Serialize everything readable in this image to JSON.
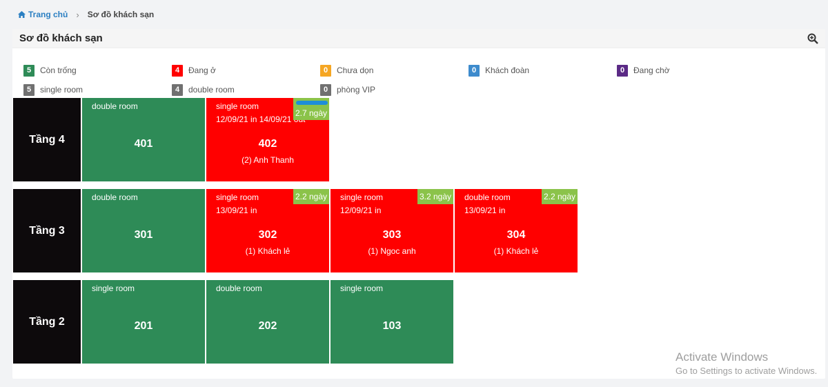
{
  "breadcrumb": {
    "home": "Trang chủ",
    "sep": "›",
    "current": "Sơ đồ khách sạn"
  },
  "panel": {
    "title": "Sơ đồ khách sạn"
  },
  "legend": {
    "row1": [
      {
        "count": "5",
        "label": "Còn trống",
        "color": "#2e8b57"
      },
      {
        "count": "4",
        "label": "Đang ở",
        "color": "#ff0000"
      },
      {
        "count": "0",
        "label": "Chưa dọn",
        "color": "#f5a623"
      },
      {
        "count": "0",
        "label": "Khách đoàn",
        "color": "#3d8bcd"
      },
      {
        "count": "0",
        "label": "Đang chờ",
        "color": "#5b2a86"
      }
    ],
    "row2": [
      {
        "count": "5",
        "label": "single room",
        "color": "#707070"
      },
      {
        "count": "4",
        "label": "double room",
        "color": "#707070"
      },
      {
        "count": "0",
        "label": "phòng VIP",
        "color": "#707070"
      }
    ]
  },
  "floors": [
    {
      "label": "Tầng 4",
      "rooms": [
        {
          "type": "double room",
          "number": "401",
          "status": "empty"
        },
        {
          "type": "single room",
          "number": "402",
          "status": "occupied",
          "date": "12/09/21 in 14/09/21 out",
          "guest": "(2) Anh Thanh",
          "days": "2.7 ngày"
        }
      ]
    },
    {
      "label": "Tầng 3",
      "rooms": [
        {
          "type": "double room",
          "number": "301",
          "status": "empty"
        },
        {
          "type": "single room",
          "number": "302",
          "status": "occupied",
          "date": "13/09/21 in",
          "guest": "(1) Khách lẻ",
          "days": "2.2 ngày"
        },
        {
          "type": "single room",
          "number": "303",
          "status": "occupied",
          "date": "12/09/21 in",
          "guest": "(1) Ngoc anh",
          "days": "3.2 ngày"
        },
        {
          "type": "double room",
          "number": "304",
          "status": "occupied",
          "date": "13/09/21 in",
          "guest": "(1) Khách lẻ",
          "days": "2.2 ngày"
        }
      ]
    },
    {
      "label": "Tầng 2",
      "rooms": [
        {
          "type": "single room",
          "number": "201",
          "status": "empty"
        },
        {
          "type": "double room",
          "number": "202",
          "status": "empty"
        },
        {
          "type": "single room",
          "number": "103",
          "status": "empty"
        }
      ]
    }
  ],
  "watermark": {
    "line1": "Activate Windows",
    "line2": "Go to Settings to activate Windows."
  },
  "icons": {
    "home": "home-icon",
    "zoom": "zoom-in-icon"
  }
}
